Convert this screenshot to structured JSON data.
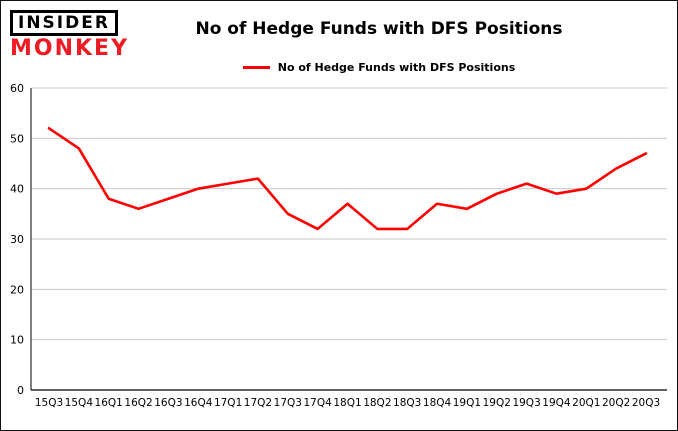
{
  "logo": {
    "line1": "INSIDER",
    "line2": "MONKEY"
  },
  "legend": {
    "label": "No of Hedge Funds with DFS Positions"
  },
  "chart_data": {
    "type": "line",
    "title": "No of Hedge Funds with DFS Positions",
    "categories": [
      "15Q3",
      "15Q4",
      "16Q1",
      "16Q2",
      "16Q3",
      "16Q4",
      "17Q1",
      "17Q2",
      "17Q3",
      "17Q4",
      "18Q1",
      "18Q2",
      "18Q3",
      "18Q4",
      "19Q1",
      "19Q2",
      "19Q3",
      "19Q4",
      "20Q1",
      "20Q2",
      "20Q3"
    ],
    "series": [
      {
        "name": "No of Hedge Funds with DFS Positions",
        "color": "#ff0000",
        "values": [
          52,
          48,
          38,
          36,
          38,
          40,
          41,
          42,
          35,
          32,
          37,
          32,
          32,
          37,
          36,
          39,
          41,
          39,
          40,
          44,
          47
        ]
      }
    ],
    "xlabel": "",
    "ylabel": "",
    "ylim": [
      0,
      60
    ],
    "yticks": [
      0,
      10,
      20,
      30,
      40,
      50,
      60
    ],
    "grid": true,
    "grid_color": "#c9c9c9",
    "axis_color": "#000000",
    "background": "#ffffff",
    "legend_position": "top-center"
  }
}
